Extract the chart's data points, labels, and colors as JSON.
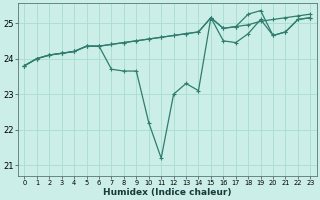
{
  "xlabel": "Humidex (Indice chaleur)",
  "background_color": "#cceee8",
  "grid_color": "#aaddcc",
  "line_color": "#2e7d6e",
  "xlim": [
    -0.5,
    23.5
  ],
  "ylim": [
    20.7,
    25.55
  ],
  "yticks": [
    21,
    22,
    23,
    24,
    25
  ],
  "xticks": [
    0,
    1,
    2,
    3,
    4,
    5,
    6,
    7,
    8,
    9,
    10,
    11,
    12,
    13,
    14,
    15,
    16,
    17,
    18,
    19,
    20,
    21,
    22,
    23
  ],
  "series": [
    [
      23.8,
      24.0,
      24.1,
      24.15,
      24.2,
      24.35,
      24.35,
      23.7,
      23.65,
      23.65,
      22.2,
      21.2,
      23.0,
      23.3,
      23.1,
      25.15,
      24.5,
      24.45,
      24.7,
      25.1,
      24.65,
      24.75,
      25.1,
      25.15
    ],
    [
      23.8,
      24.0,
      24.1,
      24.15,
      24.2,
      24.35,
      24.35,
      24.4,
      24.45,
      24.5,
      24.55,
      24.6,
      24.65,
      24.7,
      24.75,
      25.15,
      24.85,
      24.9,
      24.95,
      25.05,
      25.1,
      25.15,
      25.2,
      25.25
    ],
    [
      23.8,
      24.0,
      24.1,
      24.15,
      24.2,
      24.35,
      24.35,
      24.4,
      24.45,
      24.5,
      24.55,
      24.6,
      24.65,
      24.7,
      24.75,
      25.15,
      24.85,
      24.9,
      25.25,
      25.35,
      24.65,
      24.75,
      25.1,
      25.15
    ]
  ]
}
